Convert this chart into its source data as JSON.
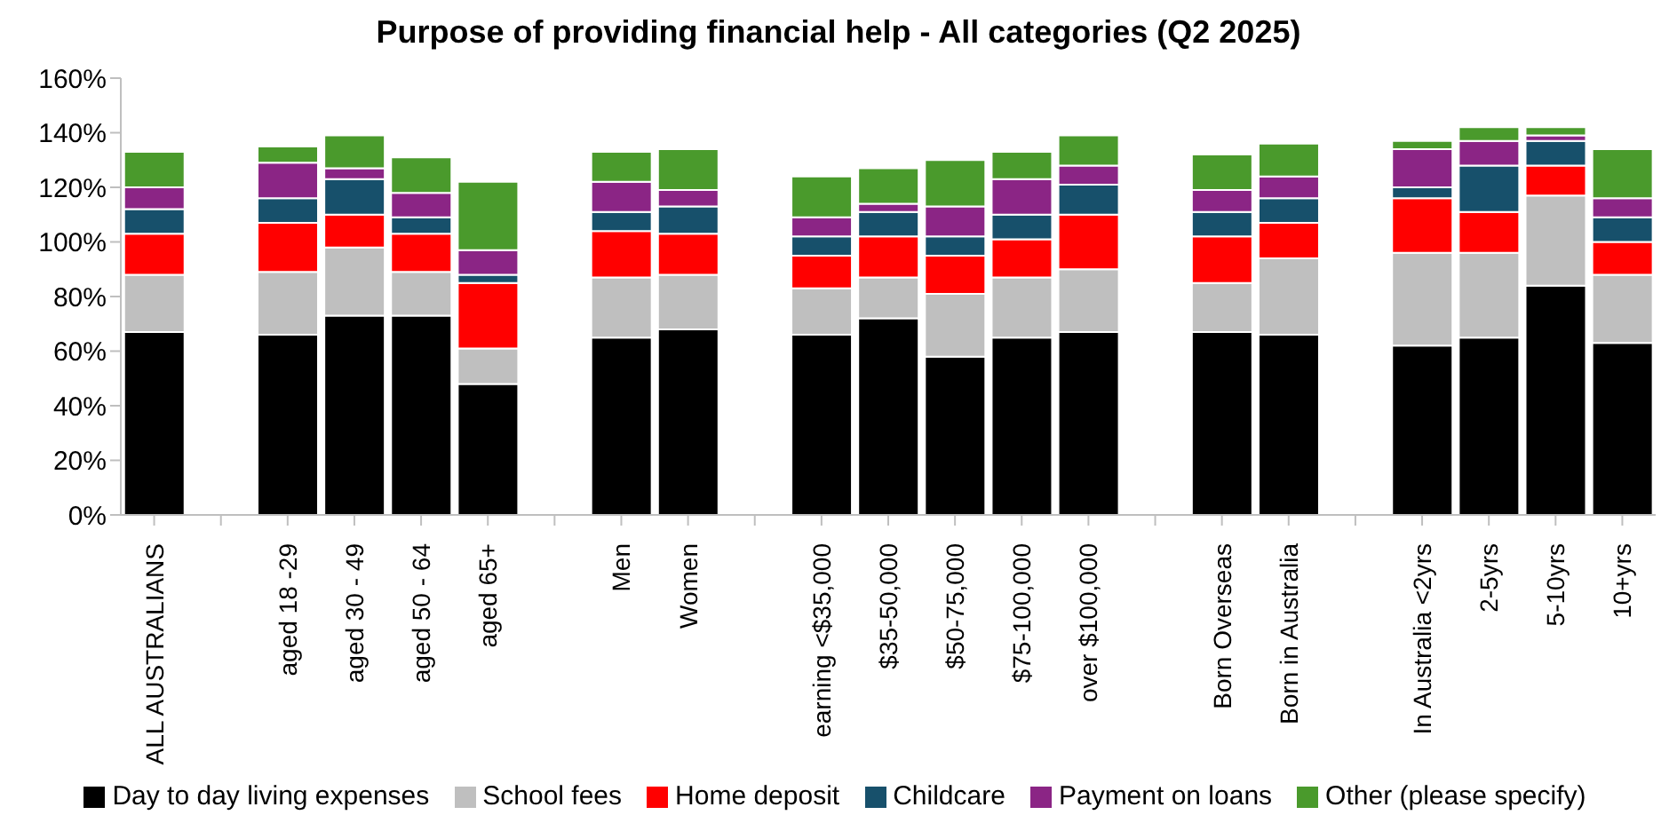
{
  "chart_data": {
    "type": "bar",
    "stacked": true,
    "title": "Purpose of providing financial help - All categories (Q2 2025)",
    "categories": [
      "ALL AUSTRALIANS",
      null,
      "aged 18 -29",
      "aged 30 - 49",
      "aged 50 - 64",
      "aged 65+",
      null,
      "Men",
      "Women",
      null,
      "earning <$35,000",
      "$35-50,000",
      "$50-75,000",
      "$75-100,000",
      "over $100,000",
      null,
      "Born Overseas",
      "Born in Australia",
      null,
      "In Australia <2yrs",
      "2-5yrs",
      "5-10yrs",
      "10+yrs"
    ],
    "series": [
      {
        "name": "Day to day living expenses",
        "color": "#000000",
        "values": [
          67,
          null,
          66,
          73,
          73,
          48,
          null,
          65,
          68,
          null,
          66,
          72,
          58,
          65,
          67,
          null,
          67,
          66,
          null,
          62,
          65,
          84,
          63
        ]
      },
      {
        "name": "School fees",
        "color": "#bfbfbf",
        "values": [
          21,
          null,
          23,
          25,
          16,
          13,
          null,
          22,
          20,
          null,
          17,
          15,
          23,
          22,
          23,
          null,
          18,
          28,
          null,
          34,
          31,
          33,
          25
        ]
      },
      {
        "name": "Home deposit",
        "color": "#ff0000",
        "values": [
          15,
          null,
          18,
          12,
          14,
          24,
          null,
          17,
          15,
          null,
          12,
          15,
          14,
          14,
          20,
          null,
          17,
          13,
          null,
          20,
          15,
          11,
          12
        ]
      },
      {
        "name": "Childcare",
        "color": "#17506b",
        "values": [
          9,
          null,
          9,
          13,
          6,
          3,
          null,
          7,
          10,
          null,
          7,
          9,
          7,
          9,
          11,
          null,
          9,
          9,
          null,
          4,
          17,
          9,
          9
        ]
      },
      {
        "name": "Payment on loans",
        "color": "#8b2585",
        "values": [
          8,
          null,
          13,
          4,
          9,
          9,
          null,
          11,
          6,
          null,
          7,
          3,
          11,
          13,
          7,
          null,
          8,
          8,
          null,
          14,
          9,
          2,
          7
        ]
      },
      {
        "name": "Other (please specify)",
        "color": "#4a9a2c",
        "values": [
          13,
          null,
          6,
          12,
          13,
          25,
          null,
          11,
          15,
          null,
          15,
          13,
          17,
          10,
          11,
          null,
          13,
          12,
          null,
          3,
          5,
          3,
          18
        ]
      }
    ],
    "ylim": [
      0,
      160
    ],
    "yticks": [
      {
        "value": 0,
        "label": "0%"
      },
      {
        "value": 20,
        "label": "20%"
      },
      {
        "value": 40,
        "label": "40%"
      },
      {
        "value": 60,
        "label": "60%"
      },
      {
        "value": 80,
        "label": "80%"
      },
      {
        "value": 100,
        "label": "100%"
      },
      {
        "value": 120,
        "label": "120%"
      },
      {
        "value": 140,
        "label": "140%"
      },
      {
        "value": 160,
        "label": "160%"
      }
    ],
    "grid": false,
    "legend": "bottom"
  }
}
